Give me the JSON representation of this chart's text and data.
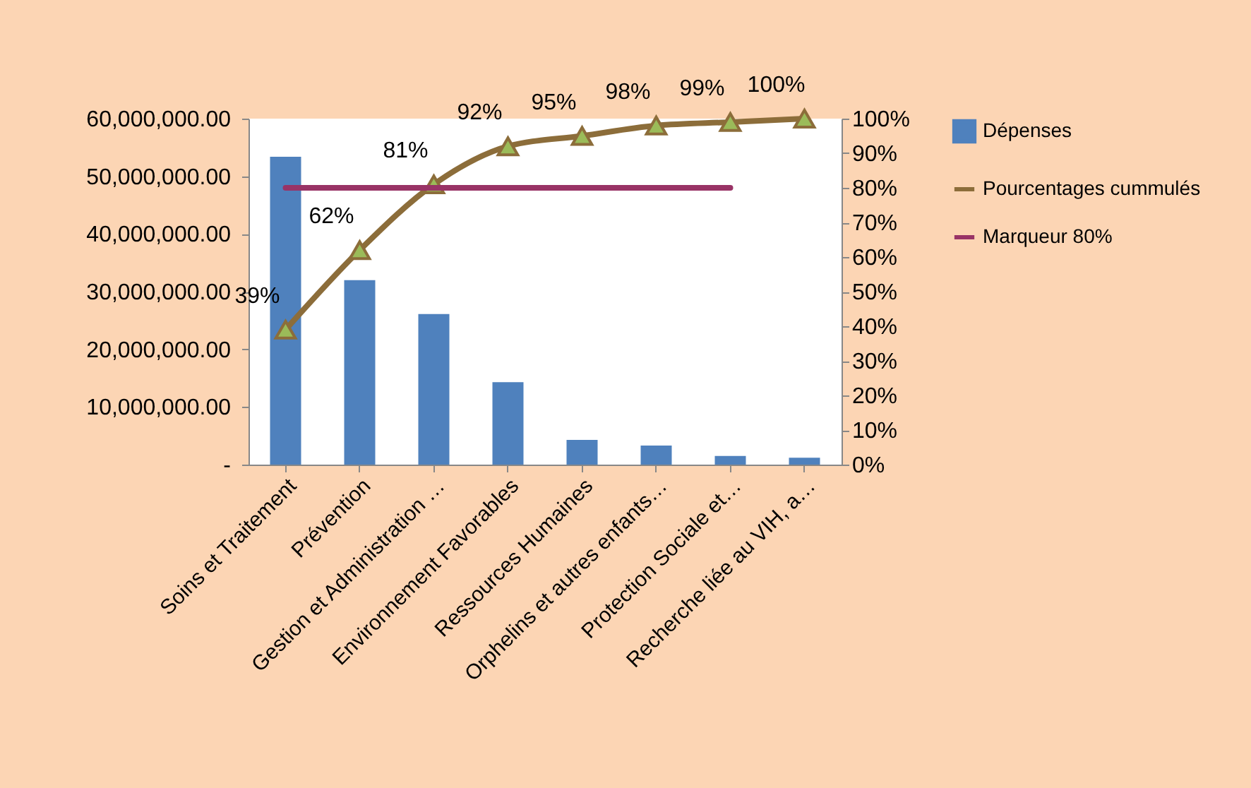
{
  "chart_data": {
    "type": "bar",
    "categories": [
      "Soins et Traitement",
      "Prévention",
      "Gestion et Administration …",
      "Environnement Favorables",
      "Ressources Humaines",
      "Orphelins et autres enfants…",
      "Protection Sociale et…",
      "Recherche liée au VIH, a…"
    ],
    "series": [
      {
        "name": "Dépenses",
        "color": "#4f81bd",
        "values": [
          53400000,
          32000000,
          26100000,
          14300000,
          4300000,
          3300000,
          1500000,
          1200000
        ]
      },
      {
        "name": "Pourcentages cummulés",
        "type": "line",
        "axis": "y2",
        "color": "#8c6d3a",
        "marker": "triangle",
        "values": [
          39,
          62,
          81,
          92,
          95,
          98,
          99,
          100
        ],
        "value_labels": [
          "39%",
          "62%",
          "81%",
          "92%",
          "95%",
          "98%",
          "99%",
          "100%"
        ]
      },
      {
        "name": "Marqueur 80%",
        "type": "line",
        "axis": "y2",
        "color": "#993366",
        "marker": "none",
        "values": [
          80,
          80,
          80,
          80,
          80,
          80,
          80,
          null
        ]
      }
    ],
    "ylim": [
      0,
      60000000
    ],
    "yticks": [
      {
        "value": 0,
        "label": "-"
      },
      {
        "value": 10000000,
        "label": "10,000,000.00"
      },
      {
        "value": 20000000,
        "label": "20,000,000.00"
      },
      {
        "value": 30000000,
        "label": "30,000,000.00"
      },
      {
        "value": 40000000,
        "label": "40,000,000.00"
      },
      {
        "value": 50000000,
        "label": "50,000,000.00"
      },
      {
        "value": 60000000,
        "label": "60,000,000.00"
      }
    ],
    "y2lim": [
      0,
      100
    ],
    "y2ticks": [
      {
        "value": 0,
        "label": "0%"
      },
      {
        "value": 10,
        "label": "10%"
      },
      {
        "value": 20,
        "label": "20%"
      },
      {
        "value": 30,
        "label": "30%"
      },
      {
        "value": 40,
        "label": "40%"
      },
      {
        "value": 50,
        "label": "50%"
      },
      {
        "value": 60,
        "label": "60%"
      },
      {
        "value": 70,
        "label": "70%"
      },
      {
        "value": 80,
        "label": "80%"
      },
      {
        "value": 90,
        "label": "90%"
      },
      {
        "value": 100,
        "label": "100%"
      }
    ],
    "grid": false,
    "legend": "right"
  }
}
